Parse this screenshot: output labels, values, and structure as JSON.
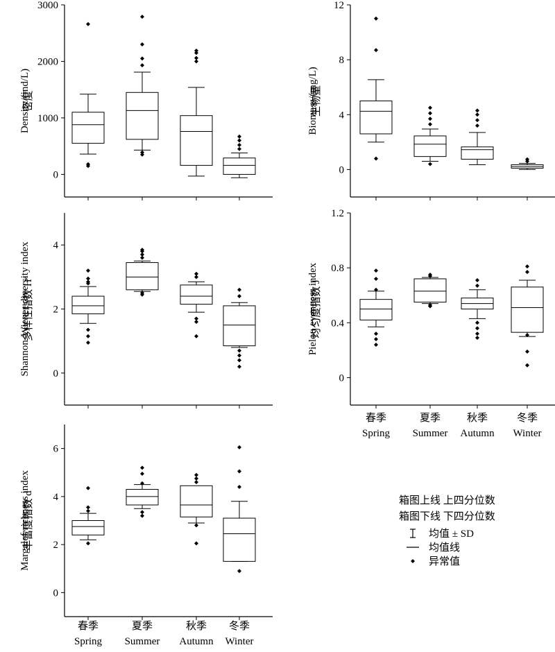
{
  "categories_cn": [
    "春季",
    "夏季",
    "秋季",
    "冬季"
  ],
  "categories_en": [
    "Spring",
    "Summer",
    "Autumn",
    "Winter"
  ],
  "legend": {
    "upper_line": "箱图上线 上四分位数",
    "lower_line": "箱图下线 下四分位数",
    "mean_sd": "均值 ± SD",
    "mean_line": "均值线",
    "outlier": "异常值"
  },
  "chart_data": [
    {
      "type": "box",
      "ylabel_cn": "密度",
      "ylabel_en": "Density/(ind/L)",
      "ylim": [
        -400,
        3000
      ],
      "yticks": [
        0,
        1000,
        2000,
        3000
      ],
      "boxes": [
        {
          "q1": 550,
          "q3": 1100,
          "mean": 880,
          "wlo": 360,
          "whi": 1420,
          "outliers": [
            150,
            180,
            2660
          ]
        },
        {
          "q1": 620,
          "q3": 1450,
          "mean": 1130,
          "wlo": 430,
          "whi": 1810,
          "outliers": [
            350,
            390,
            1930,
            2050,
            2300,
            2790
          ]
        },
        {
          "q1": 160,
          "q3": 1040,
          "mean": 760,
          "wlo": -30,
          "whi": 1540,
          "outliers": [
            2000,
            2060,
            2150,
            2190
          ]
        },
        {
          "q1": 0,
          "q3": 290,
          "mean": 160,
          "wlo": -60,
          "whi": 380,
          "outliers": [
            450,
            520,
            600,
            670
          ]
        }
      ]
    },
    {
      "type": "box",
      "ylabel_cn": "生物量",
      "ylabel_en": "Biomass/(mg/L)",
      "ylim": [
        -2,
        12
      ],
      "yticks": [
        0,
        4,
        8,
        12
      ],
      "boxes": [
        {
          "q1": 2.6,
          "q3": 5.0,
          "mean": 4.25,
          "wlo": 2.0,
          "whi": 6.55,
          "outliers": [
            0.8,
            8.7,
            11.0
          ]
        },
        {
          "q1": 0.95,
          "q3": 2.45,
          "mean": 1.85,
          "wlo": 0.6,
          "whi": 2.95,
          "outliers": [
            0.4,
            3.3,
            3.7,
            4.1,
            4.5
          ]
        },
        {
          "q1": 0.75,
          "q3": 1.65,
          "mean": 1.45,
          "wlo": 0.35,
          "whi": 2.7,
          "outliers": [
            3.2,
            3.6,
            4.0,
            4.3
          ]
        },
        {
          "q1": 0.1,
          "q3": 0.35,
          "mean": 0.22,
          "wlo": 0.0,
          "whi": 0.45,
          "outliers": [
            0.6,
            0.75
          ]
        }
      ]
    },
    {
      "type": "box",
      "ylabel_cn": "多样性指数",
      "ylabel_en": "Shannon-Wiener diversity index",
      "ylabel_symbol": "H′",
      "ylim": [
        -1,
        5
      ],
      "yticks": [
        0,
        2,
        4
      ],
      "boxes": [
        {
          "q1": 1.85,
          "q3": 2.4,
          "mean": 2.1,
          "wlo": 1.55,
          "whi": 2.7,
          "outliers": [
            0.95,
            1.15,
            1.35,
            2.8,
            2.85,
            2.95,
            3.2
          ]
        },
        {
          "q1": 2.6,
          "q3": 3.45,
          "mean": 3.0,
          "wlo": 2.55,
          "whi": 3.5,
          "outliers": [
            2.45,
            2.5,
            3.6,
            3.7,
            3.8,
            3.85
          ]
        },
        {
          "q1": 2.15,
          "q3": 2.75,
          "mean": 2.4,
          "wlo": 1.9,
          "whi": 2.85,
          "outliers": [
            1.15,
            1.6,
            1.7,
            3.0,
            3.1
          ]
        },
        {
          "q1": 0.85,
          "q3": 2.1,
          "mean": 1.5,
          "wlo": 0.8,
          "whi": 2.2,
          "outliers": [
            0.2,
            0.4,
            0.55,
            0.7,
            2.4,
            2.6
          ]
        }
      ]
    },
    {
      "type": "box",
      "ylabel_cn": "均匀度指数",
      "ylabel_en": "Pielou evenness index",
      "ylabel_symbol": "J",
      "ylim": [
        -0.2,
        1.2
      ],
      "yticks": [
        0,
        0.4,
        0.8,
        1.2
      ],
      "boxes": [
        {
          "q1": 0.42,
          "q3": 0.57,
          "mean": 0.5,
          "wlo": 0.37,
          "whi": 0.63,
          "outliers": [
            0.24,
            0.28,
            0.32,
            0.64,
            0.72,
            0.78
          ]
        },
        {
          "q1": 0.55,
          "q3": 0.72,
          "mean": 0.63,
          "wlo": 0.54,
          "whi": 0.73,
          "outliers": [
            0.52,
            0.53,
            0.74,
            0.75
          ]
        },
        {
          "q1": 0.5,
          "q3": 0.58,
          "mean": 0.54,
          "wlo": 0.43,
          "whi": 0.64,
          "outliers": [
            0.29,
            0.32,
            0.36,
            0.4,
            0.67,
            0.71
          ]
        },
        {
          "q1": 0.33,
          "q3": 0.66,
          "mean": 0.51,
          "wlo": 0.3,
          "whi": 0.71,
          "outliers": [
            0.09,
            0.19,
            0.31,
            0.77,
            0.81
          ]
        }
      ]
    },
    {
      "type": "box",
      "ylabel_cn": "丰富度指数",
      "ylabel_en": "Margalef richness index",
      "ylabel_symbol": "d",
      "ylim": [
        -1,
        7
      ],
      "yticks": [
        0,
        2,
        4,
        6
      ],
      "boxes": [
        {
          "q1": 2.4,
          "q3": 3.0,
          "mean": 2.75,
          "wlo": 2.2,
          "whi": 3.3,
          "outliers": [
            2.05,
            3.4,
            3.55,
            4.35
          ]
        },
        {
          "q1": 3.65,
          "q3": 4.3,
          "mean": 4.0,
          "wlo": 3.5,
          "whi": 4.5,
          "outliers": [
            3.2,
            3.35,
            4.55,
            4.95,
            5.2
          ]
        },
        {
          "q1": 3.15,
          "q3": 4.45,
          "mean": 3.65,
          "wlo": 2.9,
          "whi": 4.4,
          "outliers": [
            2.05,
            2.8,
            4.6,
            4.75,
            4.9
          ]
        },
        {
          "q1": 1.3,
          "q3": 3.1,
          "mean": 2.45,
          "wlo": 1.3,
          "whi": 3.8,
          "outliers": [
            0.9,
            4.4,
            5.05,
            6.05
          ]
        }
      ]
    }
  ]
}
